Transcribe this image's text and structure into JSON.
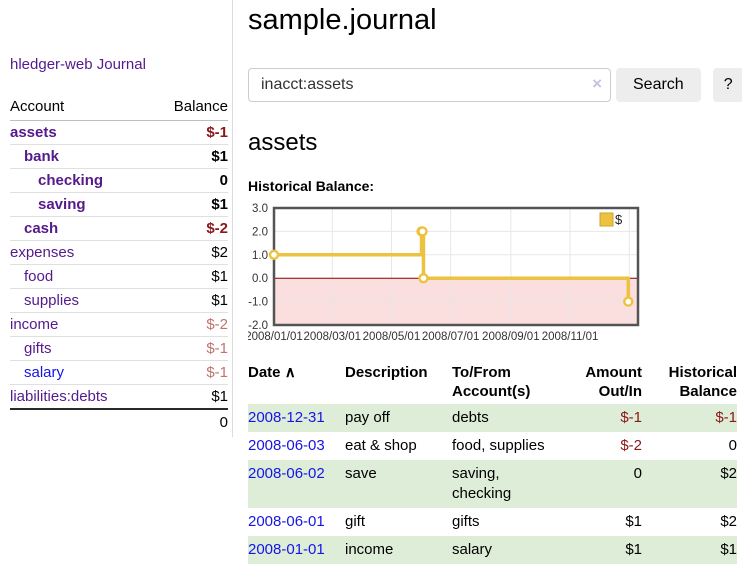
{
  "sidebar": {
    "brand": "hledger-web",
    "nav": {
      "journal_label": "Journal"
    },
    "accounts_table": {
      "headers": {
        "account": "Account",
        "balance": "Balance"
      },
      "rows": [
        {
          "name": "assets",
          "level": 0,
          "bold": true,
          "balance": "$-1",
          "neg": "strong"
        },
        {
          "name": "bank",
          "level": 1,
          "bold": true,
          "balance": "$1"
        },
        {
          "name": "checking",
          "level": 2,
          "bold": true,
          "balance": "0"
        },
        {
          "name": "saving",
          "level": 2,
          "bold": true,
          "balance": "$1"
        },
        {
          "name": "cash",
          "level": 1,
          "bold": true,
          "balance": "$-2",
          "neg": "strong"
        },
        {
          "name": "expenses",
          "level": 0,
          "bold": false,
          "balance": "$2"
        },
        {
          "name": "food",
          "level": 1,
          "bold": false,
          "balance": "$1"
        },
        {
          "name": "supplies",
          "level": 1,
          "bold": false,
          "balance": "$1"
        },
        {
          "name": "income",
          "level": 0,
          "bold": false,
          "balance": "$-2",
          "neg": "soft"
        },
        {
          "name": "gifts",
          "level": 1,
          "bold": false,
          "balance": "$-1",
          "neg": "soft"
        },
        {
          "name": "salary",
          "level": 1,
          "bold": false,
          "balance": "$-1",
          "neg": "soft",
          "link_color": "blue"
        },
        {
          "name": "liabilities:debts",
          "level": 0,
          "bold": false,
          "balance": "$1"
        }
      ],
      "total": "0"
    }
  },
  "header": {
    "title": "sample.journal"
  },
  "search": {
    "value": "inacct:assets",
    "button_label": "Search",
    "help_label": "?"
  },
  "report": {
    "heading": "assets",
    "chart_label": "Historical Balance:"
  },
  "icons": {
    "sort_asc": "∧",
    "clear": "×"
  },
  "chart_data": {
    "type": "line",
    "title": "Historical Balance:",
    "series": [
      {
        "name": "$",
        "color": "#edc240",
        "step": true,
        "points": [
          [
            "2008-01-01",
            1
          ],
          [
            "2008-06-01",
            2
          ],
          [
            "2008-06-02",
            2
          ],
          [
            "2008-06-03",
            0
          ],
          [
            "2008-12-31",
            -1
          ]
        ]
      }
    ],
    "x_range": [
      "2008-01-01",
      "2009-01-10"
    ],
    "ylim": [
      -2,
      3
    ],
    "yticks": [
      3,
      2,
      1,
      0,
      -1,
      -2
    ],
    "ytick_labels": [
      "3.0",
      "2.0",
      "1.0",
      "0.0",
      "-1.0",
      "-2.0"
    ],
    "xticks": [
      {
        "date": "2008-01-01",
        "label": "2008/01/01"
      },
      {
        "date": "2008-03-01",
        "label": "2008/03/01"
      },
      {
        "date": "2008-05-01",
        "label": "2008/05/01"
      },
      {
        "date": "2008-07-01",
        "label": "2008/07/01"
      },
      {
        "date": "2008-09-01",
        "label": "2008/09/01"
      },
      {
        "date": "2008-11-01",
        "label": "2008/11/01"
      }
    ],
    "x_gridlines": [
      "2008-03-01",
      "2008-05-01",
      "2008-07-01",
      "2008-09-01",
      "2008-11-01",
      "2009-01-01"
    ],
    "legend": {
      "label": "$",
      "position": "top-right"
    },
    "grid": true,
    "zero_line_color": "#8b0000",
    "negative_fill": "#fbdede",
    "grid_color": "#e7e7e7",
    "border_color": "#545454"
  },
  "transactions": {
    "headers": [
      {
        "line1": "Date",
        "line2": ""
      },
      {
        "line1": "Description",
        "line2": ""
      },
      {
        "line1": "To/From",
        "line2": "Account(s)"
      },
      {
        "line1": "Amount",
        "line2": "Out/In"
      },
      {
        "line1": "Historical",
        "line2": "Balance"
      }
    ],
    "rows": [
      {
        "date": "2008-12-31",
        "description": "pay off",
        "accounts": "debts",
        "accounts_wrap": false,
        "amount": "$-1",
        "amount_neg": true,
        "balance": "$-1",
        "balance_neg": true,
        "shade": true
      },
      {
        "date": "2008-06-03",
        "description": "eat & shop",
        "accounts": "food, supplies",
        "accounts_wrap": false,
        "amount": "$-2",
        "amount_neg": true,
        "balance": "0",
        "balance_neg": false,
        "shade": false
      },
      {
        "date": "2008-06-02",
        "description": "save",
        "accounts": "saving, checking",
        "accounts_wrap": true,
        "amount": "0",
        "amount_neg": false,
        "balance": "$2",
        "balance_neg": false,
        "shade": true
      },
      {
        "date": "2008-06-01",
        "description": "gift",
        "accounts": "gifts",
        "accounts_wrap": false,
        "amount": "$1",
        "amount_neg": false,
        "balance": "$2",
        "balance_neg": false,
        "shade": false
      },
      {
        "date": "2008-01-01",
        "description": "income",
        "accounts": "salary",
        "accounts_wrap": false,
        "amount": "$1",
        "amount_neg": false,
        "balance": "$1",
        "balance_neg": false,
        "shade": true
      }
    ]
  }
}
